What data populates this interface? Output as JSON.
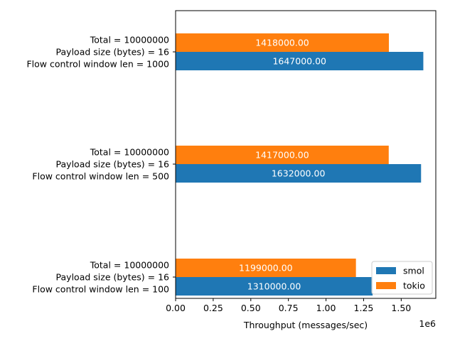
{
  "chart_data": {
    "type": "bar",
    "orientation": "horizontal",
    "categories": [
      [
        "Total = 10000000",
        "Payload size (bytes) = 16",
        "Flow control window len = 100"
      ],
      [
        "Total = 10000000",
        "Payload size (bytes) = 16",
        "Flow control window len = 500"
      ],
      [
        "Total = 10000000",
        "Payload size (bytes) = 16",
        "Flow control window len = 1000"
      ]
    ],
    "series": [
      {
        "name": "smol",
        "color": "#1f77b4",
        "values": [
          1310000,
          1632000,
          1647000
        ],
        "labels": [
          "1310000.00",
          "1632000.00",
          "1647000.00"
        ]
      },
      {
        "name": "tokio",
        "color": "#ff7f0e",
        "values": [
          1199000,
          1417000,
          1418000
        ],
        "labels": [
          "1199000.00",
          "1417000.00",
          "1418000.00"
        ]
      }
    ],
    "xlabel": "Throughput (messages/sec)",
    "xlim": [
      0,
      1730000
    ],
    "xticks": [
      0,
      250000,
      500000,
      750000,
      1000000,
      1250000,
      1500000
    ],
    "xtick_labels": [
      "0.00",
      "0.25",
      "0.50",
      "0.75",
      "1.00",
      "1.25",
      "1.50"
    ],
    "x_offset_text": "1e6",
    "legend_location": "lower-right",
    "grid": false
  }
}
